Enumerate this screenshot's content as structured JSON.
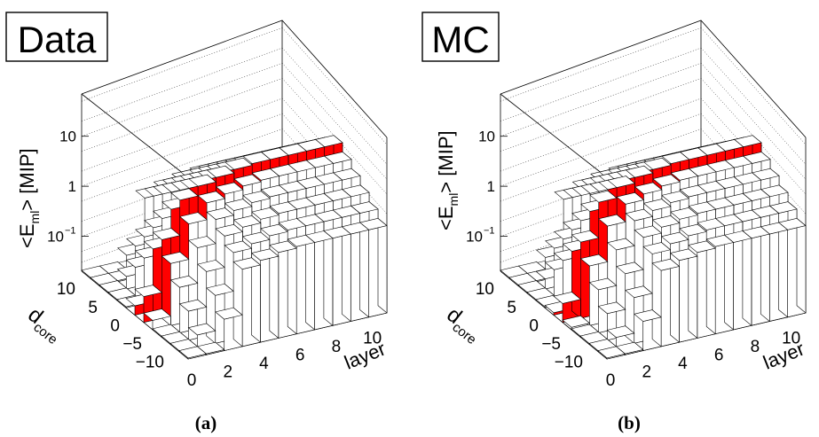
{
  "chart_data": [
    {
      "type": "bar3d",
      "panel_title": "Data",
      "caption": "(a)",
      "xlabel": "layer",
      "ylabel": "<E_ml> [MIP]",
      "ylabel_main": "<E",
      "ylabel_sub": "ml",
      "ylabel_end": "> [MIP]",
      "zlabel_main": "d",
      "zlabel_sub": "core",
      "log_scale": true,
      "ylim": [
        0.02,
        70
      ],
      "ytick_labels": [
        "10",
        "1",
        "10"
      ],
      "ytick_exponent": "−1",
      "xtick_labels": [
        "0",
        "2",
        "4",
        "6",
        "8",
        "10"
      ],
      "ztick_labels": [
        "10",
        "5",
        "0",
        "−5",
        "−10"
      ],
      "core_red_color": "#ff0000",
      "bar_color": "#ffffff",
      "layers": [
        0,
        1,
        2,
        3,
        4,
        5,
        6,
        7,
        8,
        9,
        10
      ],
      "dcore_peak": [
        0.07,
        0.9,
        5,
        8,
        10,
        12,
        13,
        13,
        13,
        13,
        13
      ]
    },
    {
      "type": "bar3d",
      "panel_title": "MC",
      "caption": "(b)",
      "xlabel": "layer",
      "ylabel": "<E_ml> [MIP]",
      "ylabel_main": "<E",
      "ylabel_sub": "ml",
      "ylabel_end": "> [MIP]",
      "zlabel_main": "d",
      "zlabel_sub": "core",
      "log_scale": true,
      "ylim": [
        0.02,
        70
      ],
      "ytick_labels": [
        "10",
        "1",
        "10"
      ],
      "ytick_exponent": "−1",
      "xtick_labels": [
        "0",
        "2",
        "4",
        "6",
        "8",
        "10"
      ],
      "ztick_labels": [
        "10",
        "5",
        "0",
        "−5",
        "−10"
      ],
      "core_red_color": "#ff0000",
      "bar_color": "#ffffff",
      "layers": [
        0,
        1,
        2,
        3,
        4,
        5,
        6,
        7,
        8,
        9,
        10
      ],
      "dcore_peak": [
        0.05,
        0.8,
        4.5,
        7.5,
        10,
        12,
        13,
        13,
        13,
        13,
        13
      ]
    }
  ]
}
